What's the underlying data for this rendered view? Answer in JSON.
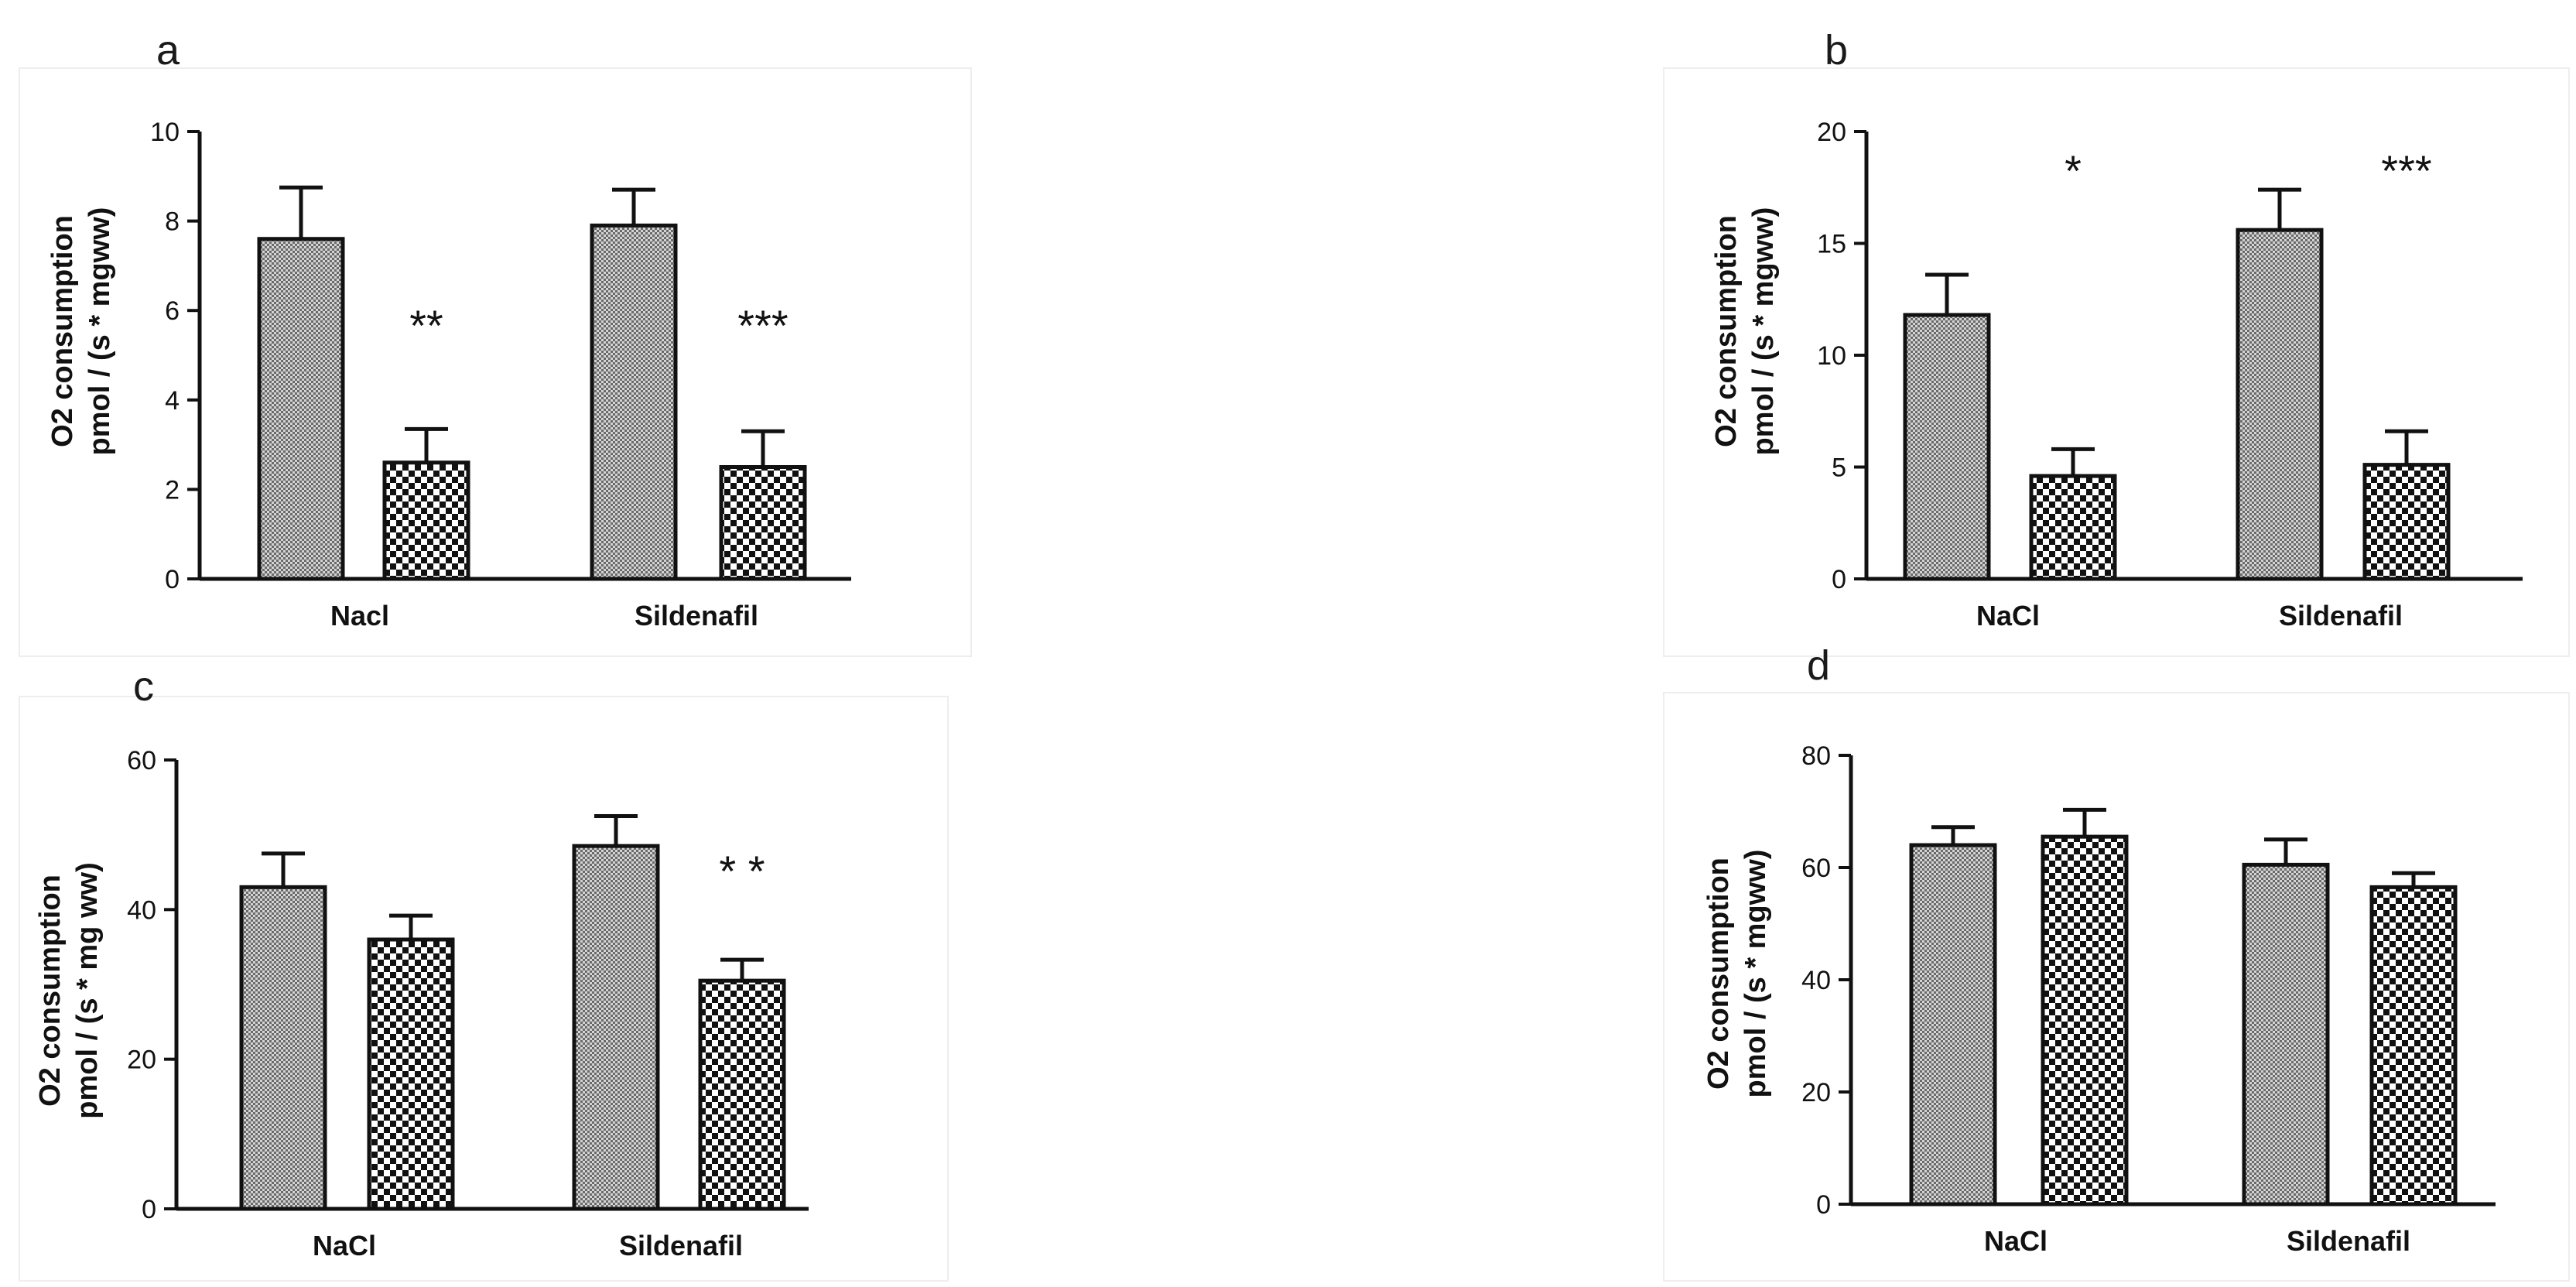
{
  "chart_data": [
    {
      "panel": "a",
      "type": "bar",
      "categories": [
        "Nacl",
        "Sildenafil"
      ],
      "series": [
        {
          "name": "series-1",
          "pattern": "fine",
          "values": [
            7.6,
            7.9
          ],
          "errors": [
            1.15,
            0.8
          ]
        },
        {
          "name": "series-2",
          "pattern": "checker",
          "values": [
            2.6,
            2.5
          ],
          "errors": [
            0.75,
            0.8
          ]
        }
      ],
      "annotations": [
        "**",
        "***"
      ],
      "ylabel_line1": "O2 consumption",
      "ylabel_line2": "pmol / (s * mgww)",
      "ylim": [
        0,
        10
      ],
      "yticks": [
        0,
        2,
        4,
        6,
        8,
        10
      ]
    },
    {
      "panel": "b",
      "type": "bar",
      "categories": [
        "NaCl",
        "Sildenafil"
      ],
      "series": [
        {
          "name": "series-1",
          "pattern": "fine",
          "values": [
            11.8,
            15.6
          ],
          "errors": [
            1.8,
            1.8
          ]
        },
        {
          "name": "series-2",
          "pattern": "checker",
          "values": [
            4.6,
            5.1
          ],
          "errors": [
            1.2,
            1.5
          ]
        }
      ],
      "annotations": [
        "*",
        "***"
      ],
      "ylabel_line1": "O2 consumption",
      "ylabel_line2": "pmol / (s * mgww)",
      "ylim": [
        0,
        20
      ],
      "yticks": [
        0,
        5,
        10,
        15,
        20
      ]
    },
    {
      "panel": "c",
      "type": "bar",
      "categories": [
        "NaCl",
        "Sildenafil"
      ],
      "series": [
        {
          "name": "series-1",
          "pattern": "fine",
          "values": [
            43,
            48.5
          ],
          "errors": [
            4.5,
            4
          ]
        },
        {
          "name": "series-2",
          "pattern": "checker",
          "values": [
            36,
            30.5
          ],
          "errors": [
            3.2,
            2.8
          ]
        }
      ],
      "annotations": [
        "",
        "* *"
      ],
      "ylabel_line1": "O2 consumption",
      "ylabel_line2": "pmol / (s * mg ww)",
      "ylim": [
        0,
        60
      ],
      "yticks": [
        0,
        20,
        40,
        60
      ]
    },
    {
      "panel": "d",
      "type": "bar",
      "categories": [
        "NaCl",
        "Sildenafil"
      ],
      "series": [
        {
          "name": "series-1",
          "pattern": "fine",
          "values": [
            64,
            60.5
          ],
          "errors": [
            3.2,
            4.5
          ]
        },
        {
          "name": "series-2",
          "pattern": "checker",
          "values": [
            65.5,
            56.5
          ],
          "errors": [
            4.8,
            2.5
          ]
        }
      ],
      "annotations": [
        "",
        ""
      ],
      "ylabel_line1": "O2 consumption",
      "ylabel_line2": "pmol / (s * mgww)",
      "ylim": [
        0,
        80
      ],
      "yticks": [
        0,
        20,
        40,
        60,
        80
      ]
    }
  ]
}
